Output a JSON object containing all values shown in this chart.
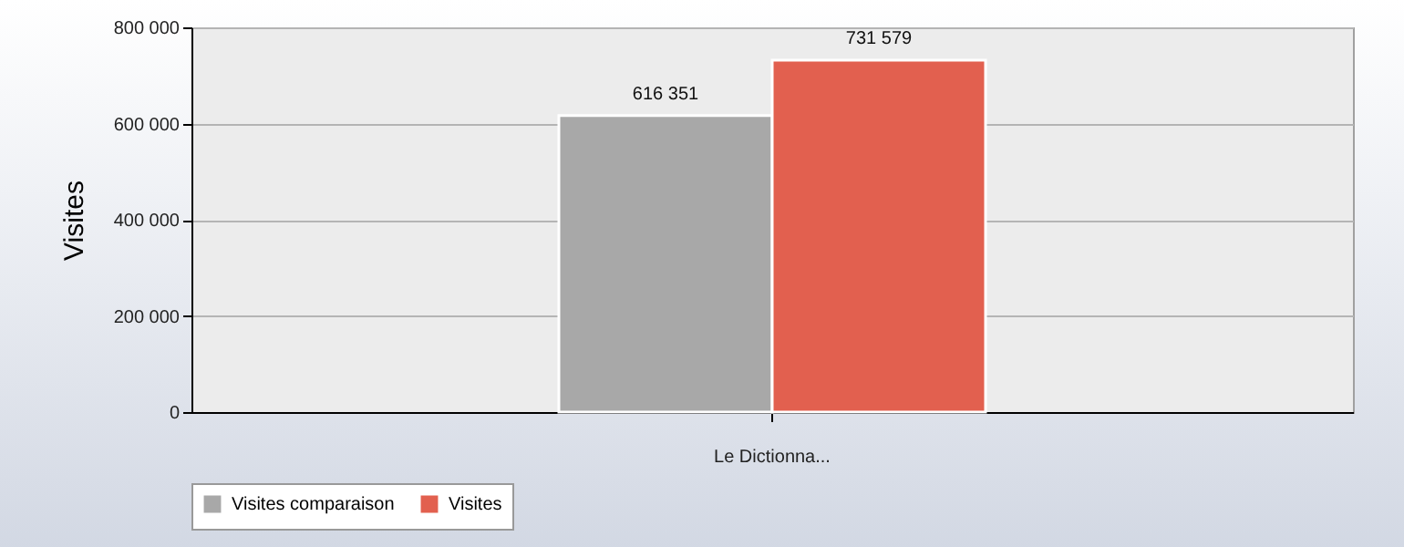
{
  "chart_data": {
    "type": "bar",
    "ylabel": "Visites",
    "categories": [
      "Le Dictionna..."
    ],
    "series": [
      {
        "name": "Visites comparaison",
        "color": "#a8a8a8",
        "values": [
          616351
        ],
        "value_labels": [
          "616 351"
        ]
      },
      {
        "name": "Visites",
        "color": "#e2604f",
        "values": [
          731579
        ],
        "value_labels": [
          "731 579"
        ]
      }
    ],
    "ylim": [
      0,
      800000
    ],
    "yticks": [
      {
        "value": 0,
        "label": "0"
      },
      {
        "value": 200000,
        "label": "200 000"
      },
      {
        "value": 400000,
        "label": "400 000"
      },
      {
        "value": 600000,
        "label": "600 000"
      },
      {
        "value": 800000,
        "label": "800 000"
      }
    ],
    "grid": "y",
    "legend": "bottom"
  }
}
